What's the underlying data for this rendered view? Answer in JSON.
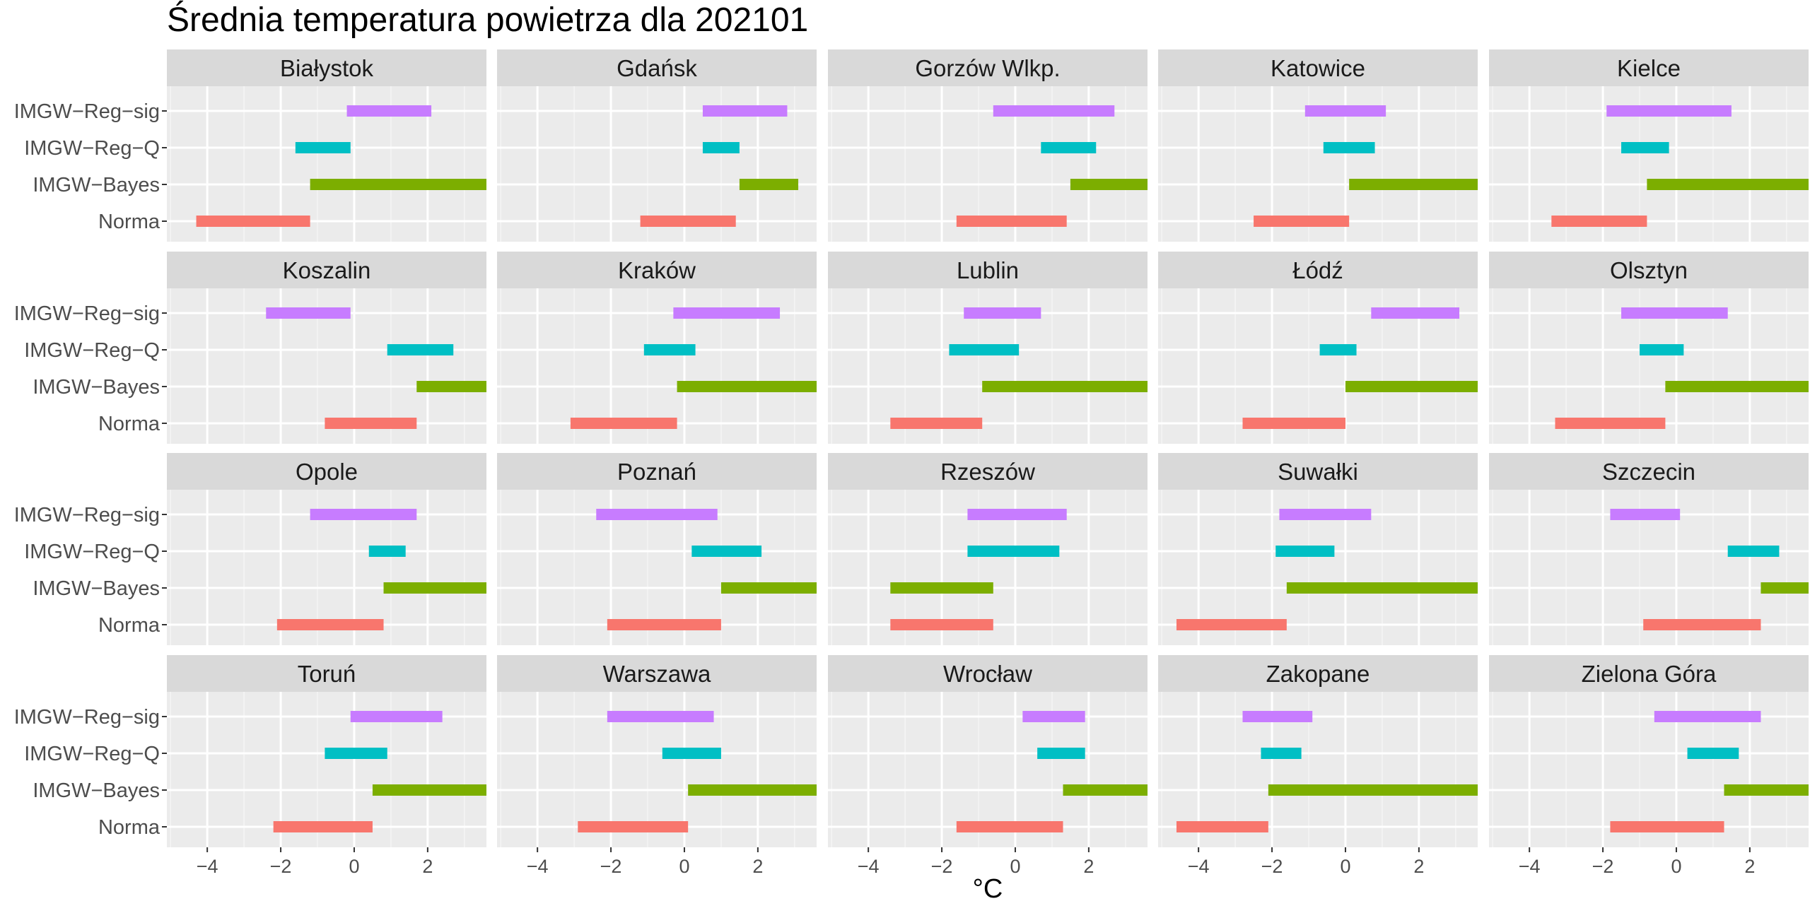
{
  "chart_data": {
    "type": "bar",
    "subtype": "floating-range-facets",
    "title": "Średnia temperatura powietrza dla 202101",
    "xlabel": "°C",
    "ylabel": "",
    "xlim": [
      -5.1,
      3.6
    ],
    "x_ticks": [
      -4,
      -2,
      0,
      2
    ],
    "x_tick_labels": [
      "−4",
      "−2",
      "0",
      "2"
    ],
    "grid": true,
    "categories": [
      "IMGW−Reg−sig",
      "IMGW−Reg−Q",
      "IMGW−Bayes",
      "Norma"
    ],
    "colors": {
      "IMGW−Reg−sig": "#C77CFF",
      "IMGW−Reg−Q": "#00BFC4",
      "IMGW−Bayes": "#7CAE00",
      "Norma": "#F8766D"
    },
    "panels": [
      {
        "name": "Białystok",
        "ranges": {
          "IMGW−Reg−sig": [
            -0.2,
            2.1
          ],
          "IMGW−Reg−Q": [
            -1.6,
            -0.1
          ],
          "IMGW−Bayes": [
            -1.2,
            3.6
          ],
          "Norma": [
            -4.3,
            -1.2
          ]
        }
      },
      {
        "name": "Gdańsk",
        "ranges": {
          "IMGW−Reg−sig": [
            0.5,
            2.8
          ],
          "IMGW−Reg−Q": [
            0.5,
            1.5
          ],
          "IMGW−Bayes": [
            1.5,
            3.1
          ],
          "Norma": [
            -1.2,
            1.4
          ]
        }
      },
      {
        "name": "Gorzów Wlkp.",
        "ranges": {
          "IMGW−Reg−sig": [
            -0.6,
            2.7
          ],
          "IMGW−Reg−Q": [
            0.7,
            2.2
          ],
          "IMGW−Bayes": [
            1.5,
            3.6
          ],
          "Norma": [
            -1.6,
            1.4
          ]
        }
      },
      {
        "name": "Katowice",
        "ranges": {
          "IMGW−Reg−sig": [
            -1.1,
            1.1
          ],
          "IMGW−Reg−Q": [
            -0.6,
            0.8
          ],
          "IMGW−Bayes": [
            0.1,
            3.6
          ],
          "Norma": [
            -2.5,
            0.1
          ]
        }
      },
      {
        "name": "Kielce",
        "ranges": {
          "IMGW−Reg−sig": [
            -1.9,
            1.5
          ],
          "IMGW−Reg−Q": [
            -1.5,
            -0.2
          ],
          "IMGW−Bayes": [
            -0.8,
            3.6
          ],
          "Norma": [
            -3.4,
            -0.8
          ]
        }
      },
      {
        "name": "Koszalin",
        "ranges": {
          "IMGW−Reg−sig": [
            -2.4,
            -0.1
          ],
          "IMGW−Reg−Q": [
            0.9,
            2.7
          ],
          "IMGW−Bayes": [
            1.7,
            3.6
          ],
          "Norma": [
            -0.8,
            1.7
          ]
        }
      },
      {
        "name": "Kraków",
        "ranges": {
          "IMGW−Reg−sig": [
            -0.3,
            2.6
          ],
          "IMGW−Reg−Q": [
            -1.1,
            0.3
          ],
          "IMGW−Bayes": [
            -0.2,
            3.6
          ],
          "Norma": [
            -3.1,
            -0.2
          ]
        }
      },
      {
        "name": "Lublin",
        "ranges": {
          "IMGW−Reg−sig": [
            -1.4,
            0.7
          ],
          "IMGW−Reg−Q": [
            -1.8,
            0.1
          ],
          "IMGW−Bayes": [
            -0.9,
            3.6
          ],
          "Norma": [
            -3.4,
            -0.9
          ]
        }
      },
      {
        "name": "Łódź",
        "ranges": {
          "IMGW−Reg−sig": [
            0.7,
            3.1
          ],
          "IMGW−Reg−Q": [
            -0.7,
            0.3
          ],
          "IMGW−Bayes": [
            0.0,
            3.6
          ],
          "Norma": [
            -2.8,
            0.0
          ]
        }
      },
      {
        "name": "Olsztyn",
        "ranges": {
          "IMGW−Reg−sig": [
            -1.5,
            1.4
          ],
          "IMGW−Reg−Q": [
            -1.0,
            0.2
          ],
          "IMGW−Bayes": [
            -0.3,
            3.6
          ],
          "Norma": [
            -3.3,
            -0.3
          ]
        }
      },
      {
        "name": "Opole",
        "ranges": {
          "IMGW−Reg−sig": [
            -1.2,
            1.7
          ],
          "IMGW−Reg−Q": [
            0.4,
            1.4
          ],
          "IMGW−Bayes": [
            0.8,
            3.6
          ],
          "Norma": [
            -2.1,
            0.8
          ]
        }
      },
      {
        "name": "Poznań",
        "ranges": {
          "IMGW−Reg−sig": [
            -2.4,
            0.9
          ],
          "IMGW−Reg−Q": [
            0.2,
            2.1
          ],
          "IMGW−Bayes": [
            1.0,
            3.6
          ],
          "Norma": [
            -2.1,
            1.0
          ]
        }
      },
      {
        "name": "Rzeszów",
        "ranges": {
          "IMGW−Reg−sig": [
            -1.3,
            1.4
          ],
          "IMGW−Reg−Q": [
            -1.3,
            1.2
          ],
          "IMGW−Bayes": [
            -3.4,
            -0.6
          ],
          "Norma": [
            -3.4,
            -0.6
          ]
        }
      },
      {
        "name": "Suwałki",
        "ranges": {
          "IMGW−Reg−sig": [
            -1.8,
            0.7
          ],
          "IMGW−Reg−Q": [
            -1.9,
            -0.3
          ],
          "IMGW−Bayes": [
            -1.6,
            3.6
          ],
          "Norma": [
            -4.6,
            -1.6
          ]
        }
      },
      {
        "name": "Szczecin",
        "ranges": {
          "IMGW−Reg−sig": [
            -1.8,
            0.1
          ],
          "IMGW−Reg−Q": [
            1.4,
            2.8
          ],
          "IMGW−Bayes": [
            2.3,
            3.6
          ],
          "Norma": [
            -0.9,
            2.3
          ]
        }
      },
      {
        "name": "Toruń",
        "ranges": {
          "IMGW−Reg−sig": [
            -0.1,
            2.4
          ],
          "IMGW−Reg−Q": [
            -0.8,
            0.9
          ],
          "IMGW−Bayes": [
            0.5,
            3.6
          ],
          "Norma": [
            -2.2,
            0.5
          ]
        }
      },
      {
        "name": "Warszawa",
        "ranges": {
          "IMGW−Reg−sig": [
            -2.1,
            0.8
          ],
          "IMGW−Reg−Q": [
            -0.6,
            1.0
          ],
          "IMGW−Bayes": [
            0.1,
            3.6
          ],
          "Norma": [
            -2.9,
            0.1
          ]
        }
      },
      {
        "name": "Wrocław",
        "ranges": {
          "IMGW−Reg−sig": [
            0.2,
            1.9
          ],
          "IMGW−Reg−Q": [
            0.6,
            1.9
          ],
          "IMGW−Bayes": [
            1.3,
            3.6
          ],
          "Norma": [
            -1.6,
            1.3
          ]
        }
      },
      {
        "name": "Zakopane",
        "ranges": {
          "IMGW−Reg−sig": [
            -2.8,
            -0.9
          ],
          "IMGW−Reg−Q": [
            -2.3,
            -1.2
          ],
          "IMGW−Bayes": [
            -2.1,
            3.6
          ],
          "Norma": [
            -4.6,
            -2.1
          ]
        }
      },
      {
        "name": "Zielona Góra",
        "ranges": {
          "IMGW−Reg−sig": [
            -0.6,
            2.3
          ],
          "IMGW−Reg−Q": [
            0.3,
            1.7
          ],
          "IMGW−Bayes": [
            1.3,
            3.6
          ],
          "Norma": [
            -1.8,
            1.3
          ]
        }
      }
    ]
  }
}
